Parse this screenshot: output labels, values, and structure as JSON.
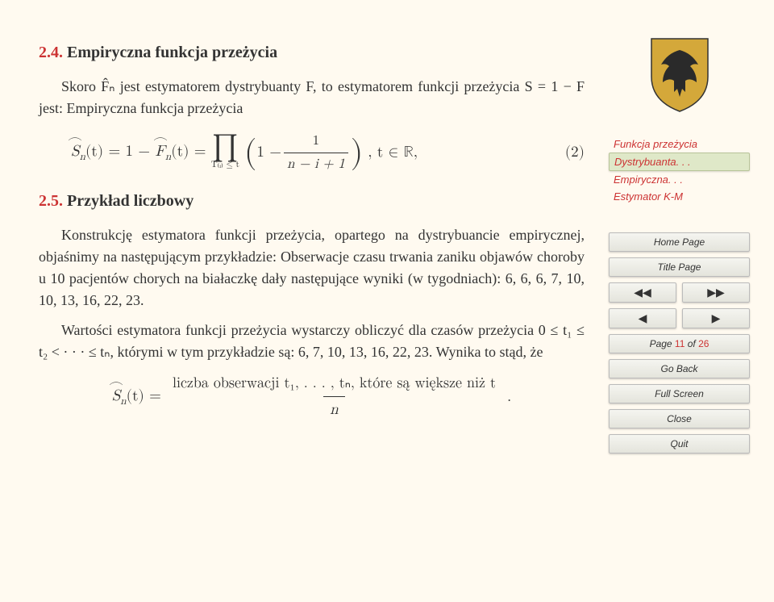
{
  "section": {
    "number": "2.4.",
    "title": "Empiryczna funkcja przeżycia",
    "intro": "Skoro F̂ₙ jest estymatorem dystrybuanty F, to estymatorem funkcji przeżycia S = 1 − F jest: Empiryczna funkcja przeżycia",
    "eq_lhs_1": "S",
    "eq_lhs_sub1": "n",
    "eq_lhs_arg": "(t) = 1 − ",
    "eq_lhs_2": "F",
    "eq_lhs_sub2": "n",
    "eq_lhs_tail": "(t) = ",
    "prod_sub": "T₍ᵢ₎ ≤ t",
    "frac_top": "1",
    "frac_bot": "n − i + 1",
    "eq_tail": ",    t ∈ ℝ,",
    "eq_num": "(2)"
  },
  "example": {
    "number": "2.5.",
    "title": "Przykład liczbowy",
    "para1": "Konstrukcję estymatora funkcji przeżycia, opartego na dystrybuancie empirycznej, objaśnimy na następującym przykładzie: Obserwacje czasu trwania zaniku objawów choroby u 10 pacjentów chorych na białaczkę dały następujące wyniki (w tygodniach): 6, 6, 6, 7, 10, 10, 13, 16, 22, 23.",
    "para2": "Wartości estymatora funkcji przeżycia wystarczy obliczyć dla czasów przeżycia 0 ≤ t₁ ≤ t₂ < · · · ≤ tₙ, którymi w tym przykładzie są: 6, 7, 10, 13, 16, 22, 23. Wynika to stąd, że",
    "final_lhs_sym": "S",
    "final_lhs_sub": "n",
    "final_lhs_tail": "(t) = ",
    "final_frac_top": "liczba obserwacji t₁, . . . , tₙ, które są większe niż t",
    "final_frac_bot": "n",
    "final_period": "."
  },
  "sidebar": {
    "toc": [
      {
        "label": "Funkcja przeżycia",
        "active": false,
        "name": "toc-funkcja"
      },
      {
        "label": "Dystrybuanta. . .",
        "active": true,
        "name": "toc-dystrybuanta"
      },
      {
        "label": "Empiryczna. . .",
        "active": false,
        "name": "toc-empiryczna"
      },
      {
        "label": "Estymator K-M",
        "active": false,
        "name": "toc-estymator"
      }
    ],
    "home": "Home Page",
    "titlepage": "Title Page",
    "nav_dl": "◀◀",
    "nav_dr": "▶▶",
    "nav_l": "◀",
    "nav_r": "▶",
    "page_prefix": "Page ",
    "page_cur": "11",
    "page_mid": " of ",
    "page_total": "26",
    "goback": "Go Back",
    "fullscreen": "Full Screen",
    "close": "Close",
    "quit": "Quit"
  },
  "logo": {
    "shield_fill": "#d4a83a",
    "eagle_fill": "#2a2a2a",
    "border": "#333"
  }
}
